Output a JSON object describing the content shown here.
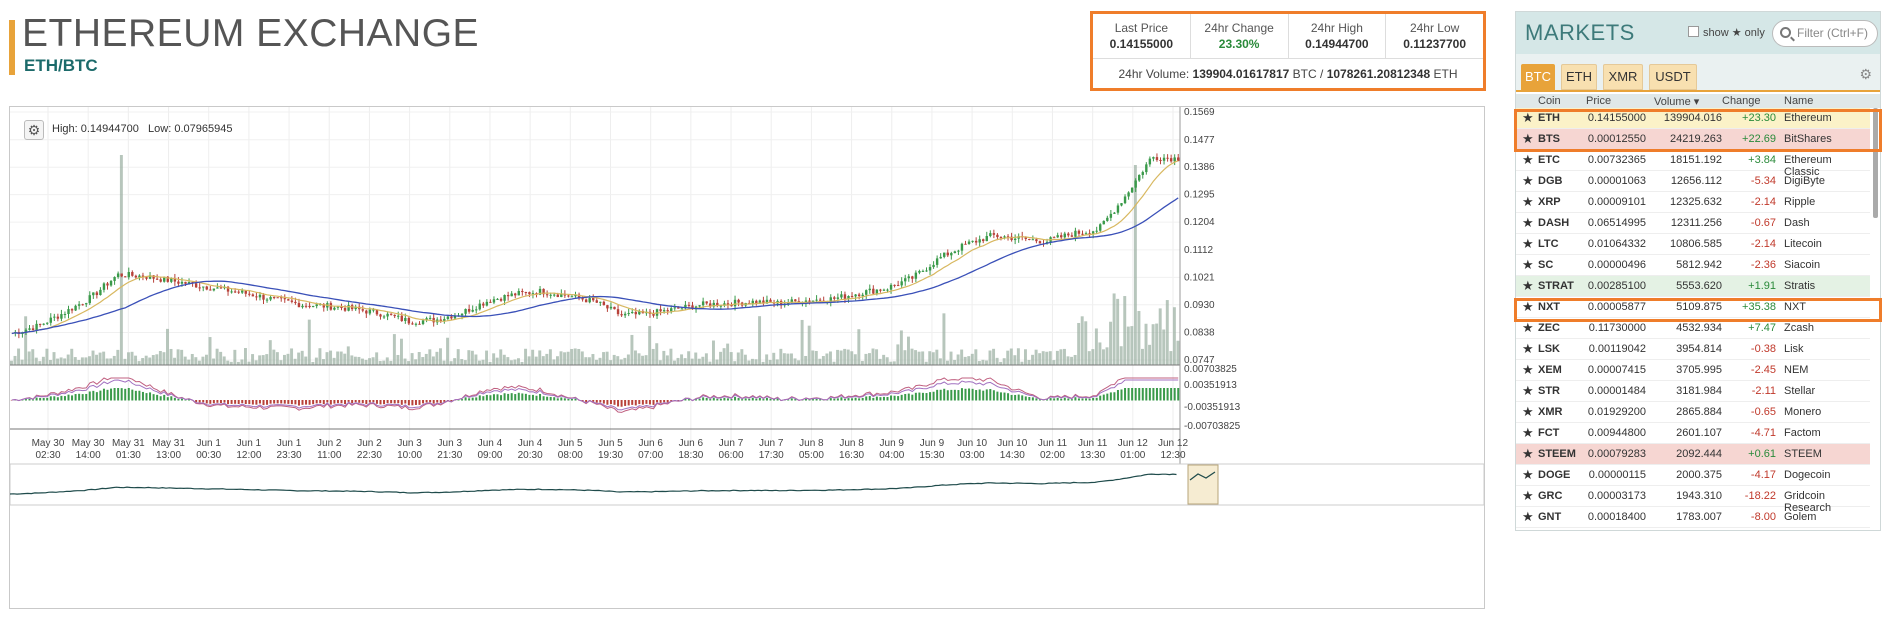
{
  "header": {
    "title": "ETHEREUM EXCHANGE",
    "pair": "ETH/BTC"
  },
  "stats": {
    "last_price_label": "Last Price",
    "last_price": "0.14155000",
    "change_label": "24hr Change",
    "change": "23.30%",
    "high_label": "24hr High",
    "high": "0.14944700",
    "low_label": "24hr Low",
    "low": "0.11237700",
    "volume_label": "24hr Volume:",
    "volume_btc": "139904.01617817",
    "volume_btc_unit": "BTC",
    "volume_sep": "/",
    "volume_eth": "1078261.20812348",
    "volume_eth_unit": "ETH"
  },
  "chart": {
    "info_high_label": "High:",
    "info_high": "0.14944700",
    "info_low_label": "Low:",
    "info_low": "0.07965945",
    "price_ticks": [
      "0.1569",
      "0.1477",
      "0.1386",
      "0.1295",
      "0.1204",
      "0.1112",
      "0.1021",
      "0.0930",
      "0.0838",
      "0.0747"
    ],
    "macd_ticks": [
      "0.00703825",
      "0.00351913",
      "-0.00351913",
      "-0.00703825"
    ],
    "x_ticks": [
      [
        "May 30",
        "02:30"
      ],
      [
        "May 30",
        "14:00"
      ],
      [
        "May 31",
        "01:30"
      ],
      [
        "May 31",
        "13:00"
      ],
      [
        "Jun 1",
        "00:30"
      ],
      [
        "Jun 1",
        "12:00"
      ],
      [
        "Jun 1",
        "23:30"
      ],
      [
        "Jun 2",
        "11:00"
      ],
      [
        "Jun 2",
        "22:30"
      ],
      [
        "Jun 3",
        "10:00"
      ],
      [
        "Jun 3",
        "21:30"
      ],
      [
        "Jun 4",
        "09:00"
      ],
      [
        "Jun 4",
        "20:30"
      ],
      [
        "Jun 5",
        "08:00"
      ],
      [
        "Jun 5",
        "19:30"
      ],
      [
        "Jun 6",
        "07:00"
      ],
      [
        "Jun 6",
        "18:30"
      ],
      [
        "Jun 7",
        "06:00"
      ],
      [
        "Jun 7",
        "17:30"
      ],
      [
        "Jun 8",
        "05:00"
      ],
      [
        "Jun 8",
        "16:30"
      ],
      [
        "Jun 9",
        "04:00"
      ],
      [
        "Jun 9",
        "15:30"
      ],
      [
        "Jun 10",
        "03:00"
      ],
      [
        "Jun 10",
        "14:30"
      ],
      [
        "Jun 11",
        "02:00"
      ],
      [
        "Jun 11",
        "13:30"
      ],
      [
        "Jun 12",
        "01:00"
      ],
      [
        "Jun 12",
        "12:30"
      ]
    ],
    "price_path": [
      0.0835,
      0.086,
      0.0905,
      0.0955,
      0.103,
      0.1025,
      0.101,
      0.0995,
      0.098,
      0.0965,
      0.0945,
      0.093,
      0.0925,
      0.0915,
      0.09,
      0.0875,
      0.088,
      0.0905,
      0.0945,
      0.0965,
      0.0975,
      0.096,
      0.094,
      0.0895,
      0.09,
      0.0915,
      0.093,
      0.0935,
      0.094,
      0.0935,
      0.0945,
      0.095,
      0.097,
      0.0985,
      0.102,
      0.1085,
      0.113,
      0.116,
      0.115,
      0.114,
      0.1165,
      0.118,
      0.129,
      0.142,
      0.1415
    ],
    "colors": {
      "up": "#3a9a4a",
      "down": "#b8423a",
      "ma_fast": "#d8b860",
      "ma_slow": "#3a50b8",
      "volume": "#9fb3a6",
      "macd_a": "#c06080",
      "macd_b": "#a070c0"
    }
  },
  "markets": {
    "title": "MARKETS",
    "show_label": "show ★ only",
    "filter_placeholder": "Filter (Ctrl+F)",
    "tabs": [
      "BTC",
      "ETH",
      "XMR",
      "USDT"
    ],
    "columns": [
      "Coin",
      "Price",
      "Volume ▾",
      "Change",
      "Name"
    ],
    "rows": [
      {
        "coin": "ETH",
        "price": "0.14155000",
        "volume": "139904.016",
        "change": "+23.30",
        "name": "Ethereum",
        "dir": "pos",
        "hl": "yellow"
      },
      {
        "coin": "BTS",
        "price": "0.00012550",
        "volume": "24219.263",
        "change": "+22.69",
        "name": "BitShares",
        "dir": "pos",
        "hl": "red"
      },
      {
        "coin": "ETC",
        "price": "0.00732365",
        "volume": "18151.192",
        "change": "+3.84",
        "name": "Ethereum Classic",
        "dir": "pos",
        "hl": ""
      },
      {
        "coin": "DGB",
        "price": "0.00001063",
        "volume": "12656.112",
        "change": "-5.34",
        "name": "DigiByte",
        "dir": "neg",
        "hl": ""
      },
      {
        "coin": "XRP",
        "price": "0.00009101",
        "volume": "12325.632",
        "change": "-2.14",
        "name": "Ripple",
        "dir": "neg",
        "hl": ""
      },
      {
        "coin": "DASH",
        "price": "0.06514995",
        "volume": "12311.256",
        "change": "-0.67",
        "name": "Dash",
        "dir": "neg",
        "hl": ""
      },
      {
        "coin": "LTC",
        "price": "0.01064332",
        "volume": "10806.585",
        "change": "-2.14",
        "name": "Litecoin",
        "dir": "neg",
        "hl": ""
      },
      {
        "coin": "SC",
        "price": "0.00000496",
        "volume": "5812.942",
        "change": "-2.36",
        "name": "Siacoin",
        "dir": "neg",
        "hl": ""
      },
      {
        "coin": "STRAT",
        "price": "0.00285100",
        "volume": "5553.620",
        "change": "+1.91",
        "name": "Stratis",
        "dir": "pos",
        "hl": "green"
      },
      {
        "coin": "NXT",
        "price": "0.00005877",
        "volume": "5109.875",
        "change": "+35.38",
        "name": "NXT",
        "dir": "pos",
        "hl": ""
      },
      {
        "coin": "ZEC",
        "price": "0.11730000",
        "volume": "4532.934",
        "change": "+7.47",
        "name": "Zcash",
        "dir": "pos",
        "hl": ""
      },
      {
        "coin": "LSK",
        "price": "0.00119042",
        "volume": "3954.814",
        "change": "-0.38",
        "name": "Lisk",
        "dir": "neg",
        "hl": ""
      },
      {
        "coin": "XEM",
        "price": "0.00007415",
        "volume": "3705.995",
        "change": "-2.45",
        "name": "NEM",
        "dir": "neg",
        "hl": ""
      },
      {
        "coin": "STR",
        "price": "0.00001484",
        "volume": "3181.984",
        "change": "-2.11",
        "name": "Stellar",
        "dir": "neg",
        "hl": ""
      },
      {
        "coin": "XMR",
        "price": "0.01929200",
        "volume": "2865.884",
        "change": "-0.65",
        "name": "Monero",
        "dir": "neg",
        "hl": ""
      },
      {
        "coin": "FCT",
        "price": "0.00944800",
        "volume": "2601.107",
        "change": "-4.71",
        "name": "Factom",
        "dir": "neg",
        "hl": ""
      },
      {
        "coin": "STEEM",
        "price": "0.00079283",
        "volume": "2092.444",
        "change": "+0.61",
        "name": "STEEM",
        "dir": "pos",
        "hl": "red"
      },
      {
        "coin": "DOGE",
        "price": "0.00000115",
        "volume": "2000.375",
        "change": "-4.17",
        "name": "Dogecoin",
        "dir": "neg",
        "hl": ""
      },
      {
        "coin": "GRC",
        "price": "0.00003173",
        "volume": "1943.310",
        "change": "-18.22",
        "name": "Gridcoin Research",
        "dir": "neg",
        "hl": ""
      },
      {
        "coin": "GNT",
        "price": "0.00018400",
        "volume": "1783.007",
        "change": "-8.00",
        "name": "Golem",
        "dir": "neg",
        "hl": ""
      }
    ]
  }
}
